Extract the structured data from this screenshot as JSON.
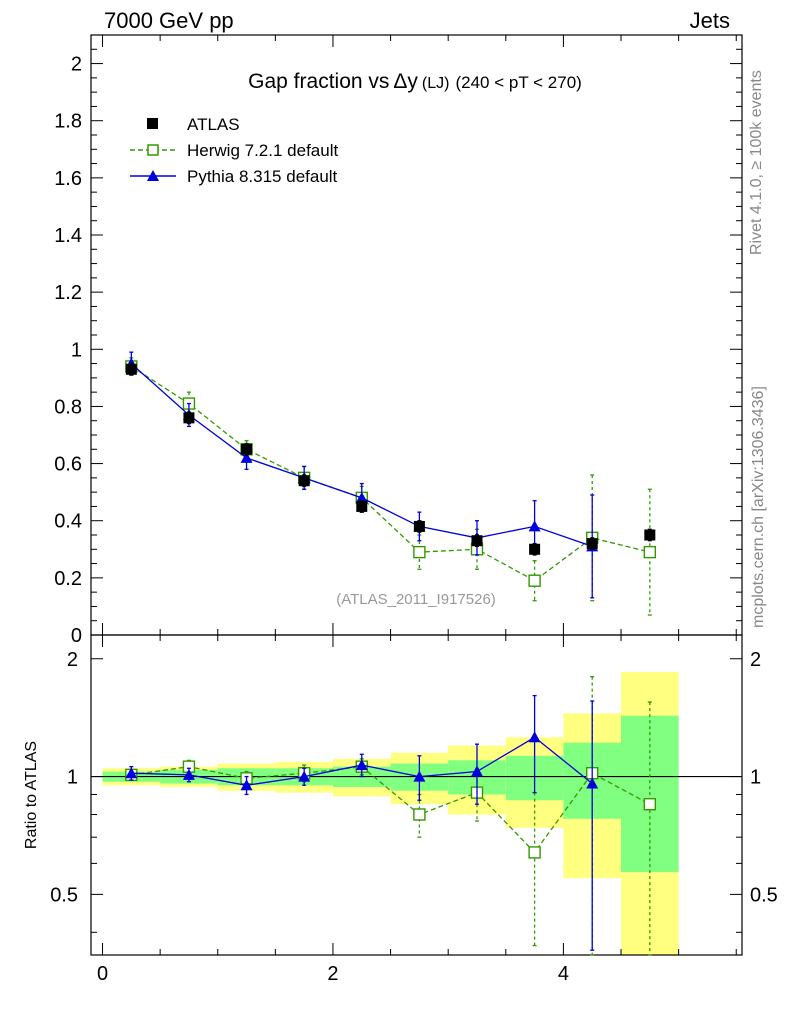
{
  "header": {
    "left": "7000 GeV pp",
    "right": "Jets"
  },
  "side_labels": {
    "rivet": "Rivet 4.1.0, ≥ 100k events",
    "mcplots": "mcplots.cern.ch [arXiv:1306.3436]"
  },
  "plot_title": {
    "main": "Gap fraction vs",
    "delta": "Δy",
    "lj": "(LJ)",
    "range": "(240 < pT < 270)"
  },
  "watermark": "(ATLAS_2011_I917526)",
  "ratio_ylabel": "Ratio to ATLAS",
  "colors": {
    "atlas": "#000000",
    "herwig": "#339900",
    "pythia": "#0000dd",
    "band_yellow": "#ffff80",
    "band_green": "#80ff80"
  },
  "chart_data": {
    "type": "scatter",
    "x": [
      0.25,
      0.75,
      1.25,
      1.75,
      2.25,
      2.75,
      3.25,
      3.75,
      4.25,
      4.75
    ],
    "xlim": [
      -0.1,
      5.55
    ],
    "xticks": [
      0,
      2,
      4
    ],
    "main": {
      "ylim": [
        0,
        2.1
      ],
      "yticks": [
        0,
        0.2,
        0.4,
        0.6,
        0.8,
        1,
        1.2,
        1.4,
        1.6,
        1.8,
        2
      ],
      "ytick_labels": [
        "0",
        "0.2",
        "0.4",
        "0.6",
        "0.8",
        "1",
        "1.2",
        "1.4",
        "1.6",
        "1.8",
        "2"
      ],
      "series": [
        {
          "name": "ATLAS",
          "style": "data",
          "y": [
            0.93,
            0.76,
            0.65,
            0.54,
            0.45,
            0.38,
            0.33,
            0.3,
            0.32,
            0.35
          ],
          "err": [
            0.02,
            0.02,
            0.02,
            0.02,
            0.02,
            0.02,
            0.02,
            0.02,
            0.02,
            0.02
          ]
        },
        {
          "name": "Herwig 7.2.1 default",
          "style": "herwig",
          "y": [
            0.94,
            0.81,
            0.65,
            0.55,
            0.48,
            0.29,
            0.3,
            0.19,
            0.34,
            0.29
          ],
          "err": [
            0.03,
            0.04,
            0.03,
            0.04,
            0.04,
            0.06,
            0.07,
            0.07,
            0.22,
            0.22
          ]
        },
        {
          "name": "Pythia 8.315 default",
          "style": "pythia",
          "y": [
            0.95,
            0.77,
            0.62,
            0.55,
            0.48,
            0.38,
            0.34,
            0.38,
            0.31,
            null
          ],
          "err": [
            0.04,
            0.04,
            0.04,
            0.04,
            0.05,
            0.05,
            0.06,
            0.09,
            0.18,
            null
          ]
        }
      ]
    },
    "ratio": {
      "ylim": [
        0.35,
        2.3
      ],
      "yticks": [
        0.5,
        1,
        2
      ],
      "ytick_labels": [
        "0.5",
        "1",
        "2"
      ],
      "band_green": [
        0.03,
        0.04,
        0.05,
        0.05,
        0.06,
        0.08,
        0.1,
        0.13,
        0.22,
        0.43
      ],
      "band_yellow": [
        0.05,
        0.06,
        0.08,
        0.09,
        0.11,
        0.15,
        0.2,
        0.26,
        0.45,
        0.85
      ],
      "series": [
        {
          "name": "Herwig 7.2.1 default",
          "style": "herwig",
          "y": [
            1.01,
            1.06,
            0.99,
            1.02,
            1.06,
            0.8,
            0.91,
            0.64,
            1.02,
            0.85
          ],
          "err": [
            0.03,
            0.04,
            0.04,
            0.05,
            0.05,
            0.1,
            0.14,
            0.27,
            0.78,
            0.7
          ]
        },
        {
          "name": "Pythia 8.315 default",
          "style": "pythia",
          "y": [
            1.02,
            1.01,
            0.95,
            1.0,
            1.07,
            1.0,
            1.03,
            1.26,
            0.96,
            null
          ],
          "err": [
            0.04,
            0.04,
            0.05,
            0.05,
            0.07,
            0.13,
            0.18,
            0.35,
            0.6,
            null
          ]
        }
      ]
    }
  }
}
